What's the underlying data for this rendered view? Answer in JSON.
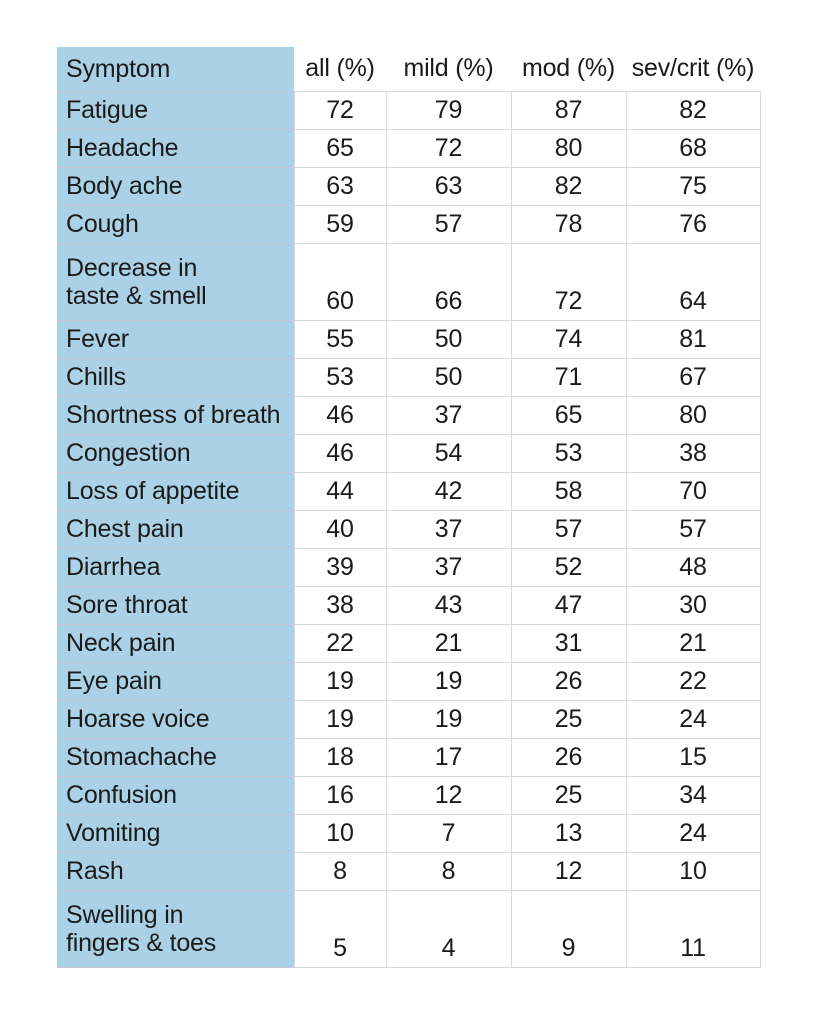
{
  "chart_data": {
    "type": "table",
    "columns": [
      "Symptom",
      "all (%)",
      "mild (%)",
      "mod (%)",
      "sev/crit (%)"
    ],
    "rows": [
      {
        "symptom": "Fatigue",
        "values": [
          72,
          79,
          87,
          82
        ]
      },
      {
        "symptom": "Headache",
        "values": [
          65,
          72,
          80,
          68
        ]
      },
      {
        "symptom": "Body ache",
        "values": [
          63,
          63,
          82,
          75
        ]
      },
      {
        "symptom": "Cough",
        "values": [
          59,
          57,
          78,
          76
        ]
      },
      {
        "symptom": "Decrease in taste & smell",
        "symptom_lines": [
          "Decrease in",
          "taste & smell"
        ],
        "tall": true,
        "values": [
          60,
          66,
          72,
          64
        ]
      },
      {
        "symptom": "Fever",
        "values": [
          55,
          50,
          74,
          81
        ]
      },
      {
        "symptom": "Chills",
        "values": [
          53,
          50,
          71,
          67
        ]
      },
      {
        "symptom": "Shortness of breath",
        "values": [
          46,
          37,
          65,
          80
        ]
      },
      {
        "symptom": "Congestion",
        "values": [
          46,
          54,
          53,
          38
        ]
      },
      {
        "symptom": "Loss of appetite",
        "values": [
          44,
          42,
          58,
          70
        ]
      },
      {
        "symptom": "Chest pain",
        "values": [
          40,
          37,
          57,
          57
        ]
      },
      {
        "symptom": "Diarrhea",
        "values": [
          39,
          37,
          52,
          48
        ]
      },
      {
        "symptom": "Sore throat",
        "values": [
          38,
          43,
          47,
          30
        ]
      },
      {
        "symptom": "Neck pain",
        "values": [
          22,
          21,
          31,
          21
        ]
      },
      {
        "symptom": "Eye pain",
        "values": [
          19,
          19,
          26,
          22
        ]
      },
      {
        "symptom": "Hoarse voice",
        "values": [
          19,
          19,
          25,
          24
        ]
      },
      {
        "symptom": "Stomachache",
        "values": [
          18,
          17,
          26,
          15
        ]
      },
      {
        "symptom": "Confusion",
        "values": [
          16,
          12,
          25,
          34
        ]
      },
      {
        "symptom": "Vomiting",
        "values": [
          10,
          7,
          13,
          24
        ]
      },
      {
        "symptom": "Rash",
        "values": [
          8,
          8,
          12,
          10
        ]
      },
      {
        "symptom": "Swelling in fingers & toes",
        "symptom_lines": [
          "Swelling in",
          "fingers & toes"
        ],
        "tall": true,
        "values": [
          5,
          4,
          9,
          11
        ]
      }
    ]
  },
  "colors": {
    "symptom_column_bg": "#aad1e6",
    "grid_border": "#d9d9d9",
    "blue_row_border": "#c9cbd4",
    "text": "#1b1b1b",
    "background": "#ffffff"
  }
}
